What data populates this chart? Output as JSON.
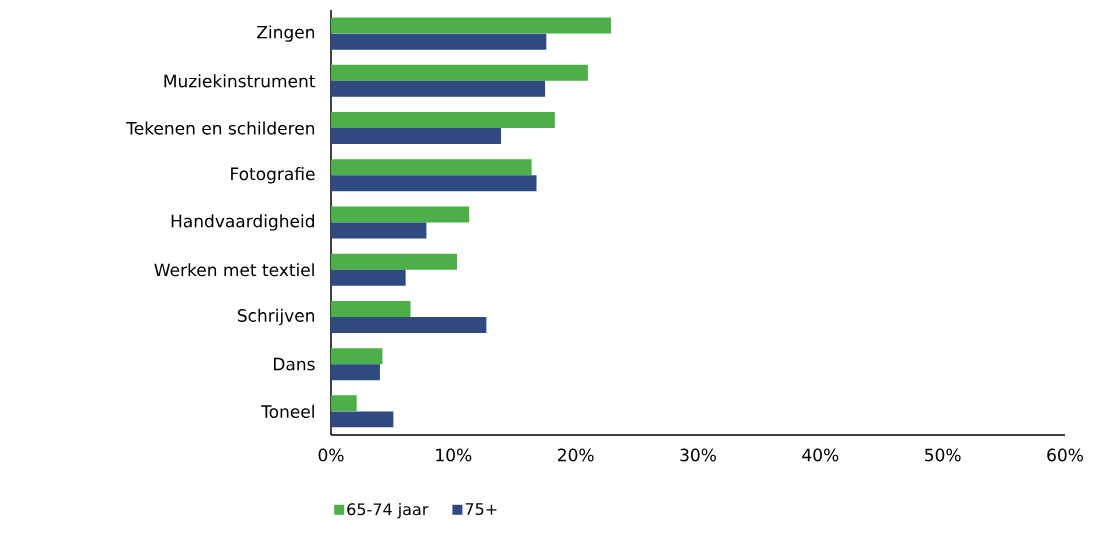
{
  "chart_data": {
    "type": "bar",
    "orientation": "horizontal",
    "categories": [
      "Zingen",
      "Muziekinstrument",
      "Tekenen en schilderen",
      "Fotografie",
      "Handvaardigheid",
      "Werken met textiel",
      "Schrijven",
      "Dans",
      "Toneel"
    ],
    "series": [
      {
        "name": "65-74 jaar",
        "color": "#4caf47",
        "values": [
          22.9,
          21.0,
          18.3,
          16.4,
          11.3,
          10.3,
          6.5,
          4.2,
          2.1
        ]
      },
      {
        "name": "75+",
        "color": "#2e4a80",
        "values": [
          17.6,
          17.5,
          13.9,
          16.8,
          7.8,
          6.1,
          12.7,
          4.0,
          5.1
        ]
      }
    ],
    "xlim": [
      0,
      60
    ],
    "xticks": [
      {
        "value": 0,
        "label": "0%"
      },
      {
        "value": 10,
        "label": "10%"
      },
      {
        "value": 20,
        "label": "20%"
      },
      {
        "value": 30,
        "label": "30%"
      },
      {
        "value": 40,
        "label": "40%"
      },
      {
        "value": 50,
        "label": "50%"
      },
      {
        "value": 60,
        "label": "60%"
      }
    ],
    "legend": "bottom"
  }
}
